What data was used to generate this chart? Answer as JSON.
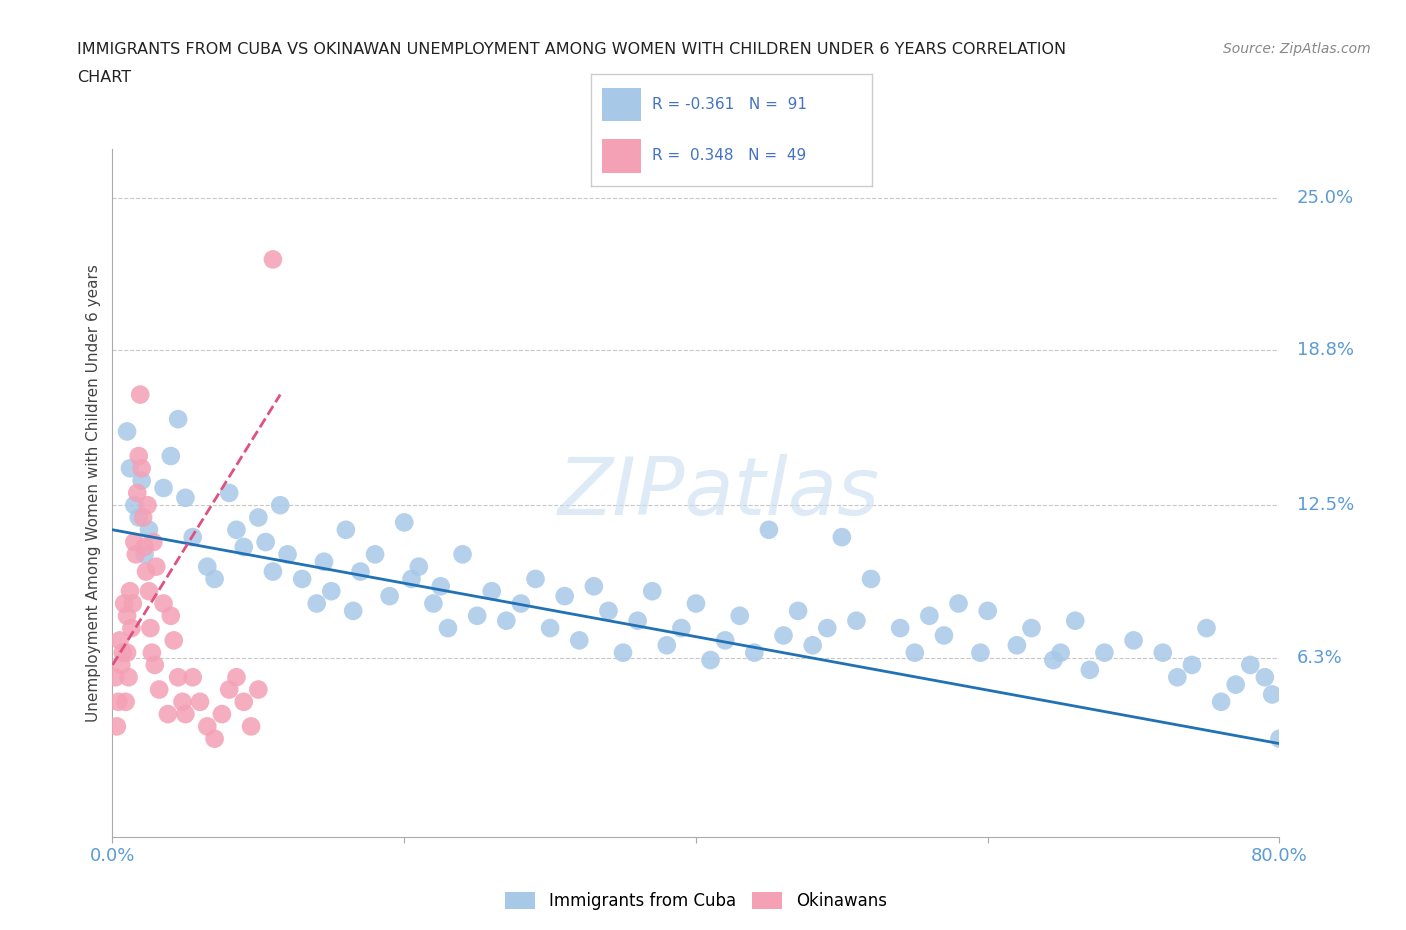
{
  "title_line1": "IMMIGRANTS FROM CUBA VS OKINAWAN UNEMPLOYMENT AMONG WOMEN WITH CHILDREN UNDER 6 YEARS CORRELATION",
  "title_line2": "CHART",
  "source": "Source: ZipAtlas.com",
  "ylabel": "Unemployment Among Women with Children Under 6 years",
  "y_ticks_right": [
    6.3,
    12.5,
    18.8,
    25.0
  ],
  "y_tick_labels_right": [
    "6.3%",
    "12.5%",
    "18.8%",
    "25.0%"
  ],
  "xlim": [
    0.0,
    80.0
  ],
  "ylim": [
    -1.0,
    27.0
  ],
  "legend_r1": "R = -0.361",
  "legend_n1": "N =  91",
  "legend_r2": "R =  0.348",
  "legend_n2": "N =  49",
  "watermark": "ZIPatlas",
  "color_blue": "#a8c8e8",
  "color_pink": "#f4a0b5",
  "color_trend_blue": "#2171b5",
  "color_trend_pink": "#e05080",
  "scatter_blue": {
    "x": [
      1.2,
      1.5,
      2.0,
      1.8,
      2.5,
      2.2,
      1.0,
      3.5,
      4.0,
      4.5,
      5.0,
      5.5,
      6.5,
      7.0,
      8.0,
      8.5,
      9.0,
      10.0,
      10.5,
      11.0,
      11.5,
      12.0,
      13.0,
      14.0,
      14.5,
      15.0,
      16.0,
      16.5,
      17.0,
      18.0,
      19.0,
      20.0,
      20.5,
      21.0,
      22.0,
      22.5,
      23.0,
      24.0,
      25.0,
      26.0,
      27.0,
      28.0,
      29.0,
      30.0,
      31.0,
      32.0,
      33.0,
      34.0,
      35.0,
      36.0,
      37.0,
      38.0,
      39.0,
      40.0,
      41.0,
      42.0,
      43.0,
      44.0,
      45.0,
      46.0,
      47.0,
      48.0,
      49.0,
      50.0,
      51.0,
      52.0,
      54.0,
      55.0,
      56.0,
      57.0,
      58.0,
      59.5,
      60.0,
      62.0,
      63.0,
      64.5,
      65.0,
      66.0,
      67.0,
      68.0,
      70.0,
      72.0,
      73.0,
      74.0,
      75.0,
      76.0,
      77.0,
      78.0,
      79.0,
      79.5,
      80.0
    ],
    "y": [
      14.0,
      12.5,
      13.5,
      12.0,
      11.5,
      10.5,
      15.5,
      13.2,
      14.5,
      16.0,
      12.8,
      11.2,
      10.0,
      9.5,
      13.0,
      11.5,
      10.8,
      12.0,
      11.0,
      9.8,
      12.5,
      10.5,
      9.5,
      8.5,
      10.2,
      9.0,
      11.5,
      8.2,
      9.8,
      10.5,
      8.8,
      11.8,
      9.5,
      10.0,
      8.5,
      9.2,
      7.5,
      10.5,
      8.0,
      9.0,
      7.8,
      8.5,
      9.5,
      7.5,
      8.8,
      7.0,
      9.2,
      8.2,
      6.5,
      7.8,
      9.0,
      6.8,
      7.5,
      8.5,
      6.2,
      7.0,
      8.0,
      6.5,
      11.5,
      7.2,
      8.2,
      6.8,
      7.5,
      11.2,
      7.8,
      9.5,
      7.5,
      6.5,
      8.0,
      7.2,
      8.5,
      6.5,
      8.2,
      6.8,
      7.5,
      6.2,
      6.5,
      7.8,
      5.8,
      6.5,
      7.0,
      6.5,
      5.5,
      6.0,
      7.5,
      4.5,
      5.2,
      6.0,
      5.5,
      4.8,
      3.0
    ]
  },
  "scatter_pink": {
    "x": [
      0.2,
      0.3,
      0.4,
      0.5,
      0.6,
      0.7,
      0.8,
      0.9,
      1.0,
      1.0,
      1.1,
      1.2,
      1.3,
      1.4,
      1.5,
      1.6,
      1.7,
      1.8,
      1.9,
      2.0,
      2.1,
      2.2,
      2.3,
      2.4,
      2.5,
      2.6,
      2.7,
      2.8,
      2.9,
      3.0,
      3.2,
      3.5,
      3.8,
      4.0,
      4.2,
      4.5,
      4.8,
      5.0,
      5.5,
      6.0,
      6.5,
      7.0,
      7.5,
      8.0,
      8.5,
      9.0,
      9.5,
      10.0,
      11.0
    ],
    "y": [
      5.5,
      3.5,
      4.5,
      7.0,
      6.0,
      6.5,
      8.5,
      4.5,
      6.5,
      8.0,
      5.5,
      9.0,
      7.5,
      8.5,
      11.0,
      10.5,
      13.0,
      14.5,
      17.0,
      14.0,
      12.0,
      10.8,
      9.8,
      12.5,
      9.0,
      7.5,
      6.5,
      11.0,
      6.0,
      10.0,
      5.0,
      8.5,
      4.0,
      8.0,
      7.0,
      5.5,
      4.5,
      4.0,
      5.5,
      4.5,
      3.5,
      3.0,
      4.0,
      5.0,
      5.5,
      4.5,
      3.5,
      5.0,
      22.5
    ]
  },
  "blue_trend_line": {
    "x0": 0.0,
    "x1": 80.0,
    "y0": 11.5,
    "y1": 2.8
  },
  "pink_trend_line": {
    "x0": 0.0,
    "x1": 11.5,
    "y0": 6.0,
    "y1": 17.0
  }
}
